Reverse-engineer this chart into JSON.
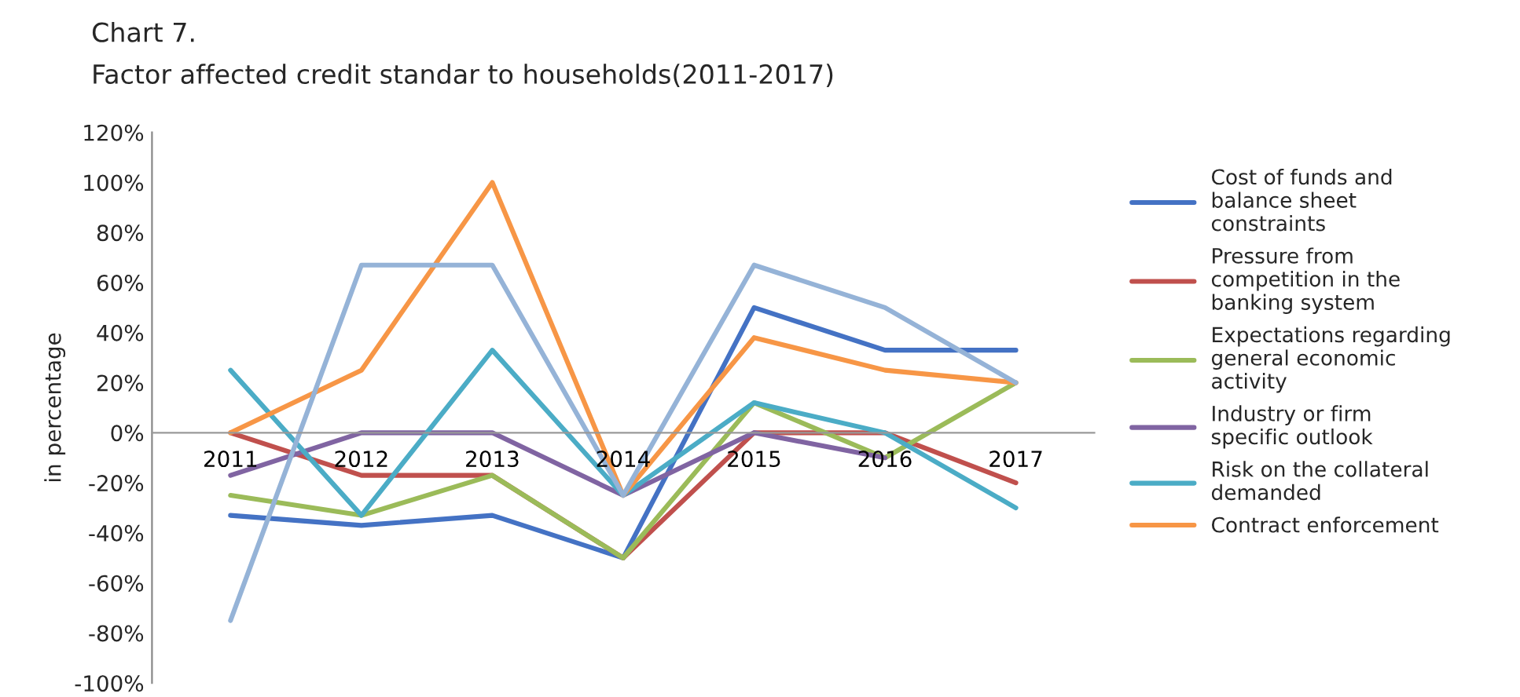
{
  "chart_data": {
    "type": "line",
    "title": "Chart 7.",
    "subtitle": "Factor affected credit standar to households(2011-2017)",
    "ylabel": "in percentage",
    "categories": [
      "2011",
      "2012",
      "2013",
      "2014",
      "2015",
      "2016",
      "2017"
    ],
    "series": [
      {
        "name": "Cost of funds and balance sheet constraints",
        "color": "#4472c4",
        "values": [
          -33,
          -37,
          -33,
          -50,
          50,
          33,
          33
        ]
      },
      {
        "name": "Pressure from competition in the banking system",
        "color": "#c0504d",
        "values": [
          0,
          -17,
          -17,
          -50,
          0,
          0,
          -20
        ]
      },
      {
        "name": "Expectations regarding general economic activity",
        "color": "#9bbb59",
        "values": [
          -25,
          -33,
          -17,
          -50,
          12,
          -10,
          20
        ]
      },
      {
        "name": "Industry or firm specific outlook",
        "color": "#8064a2",
        "values": [
          -17,
          0,
          0,
          -25,
          0,
          -10,
          null
        ]
      },
      {
        "name": "Risk on the collateral demanded",
        "color": "#4bacc6",
        "values": [
          25,
          -33,
          33,
          -25,
          12,
          0,
          -30
        ]
      },
      {
        "name": "Contract enforcement",
        "color": "#f79646",
        "values": [
          0,
          25,
          100,
          -25,
          38,
          25,
          20
        ]
      },
      {
        "color": "#95b3d7",
        "values": [
          -75,
          67,
          67,
          -25,
          67,
          50,
          20
        ]
      }
    ],
    "ylim": [
      -100,
      120
    ],
    "yticks": [
      {
        "value": -100,
        "label": "-100%"
      },
      {
        "value": -80,
        "label": "-80%"
      },
      {
        "value": -60,
        "label": "-60%"
      },
      {
        "value": -40,
        "label": "-40%"
      },
      {
        "value": -20,
        "label": "-20%"
      },
      {
        "value": 0,
        "label": "0%"
      },
      {
        "value": 20,
        "label": "20%"
      },
      {
        "value": 40,
        "label": "40%"
      },
      {
        "value": 60,
        "label": "60%"
      },
      {
        "value": 80,
        "label": "80%"
      },
      {
        "value": 100,
        "label": "100%"
      },
      {
        "value": 120,
        "label": "120%"
      }
    ],
    "grid": false,
    "legend": "right",
    "marker": "none",
    "line_style": "solid"
  }
}
